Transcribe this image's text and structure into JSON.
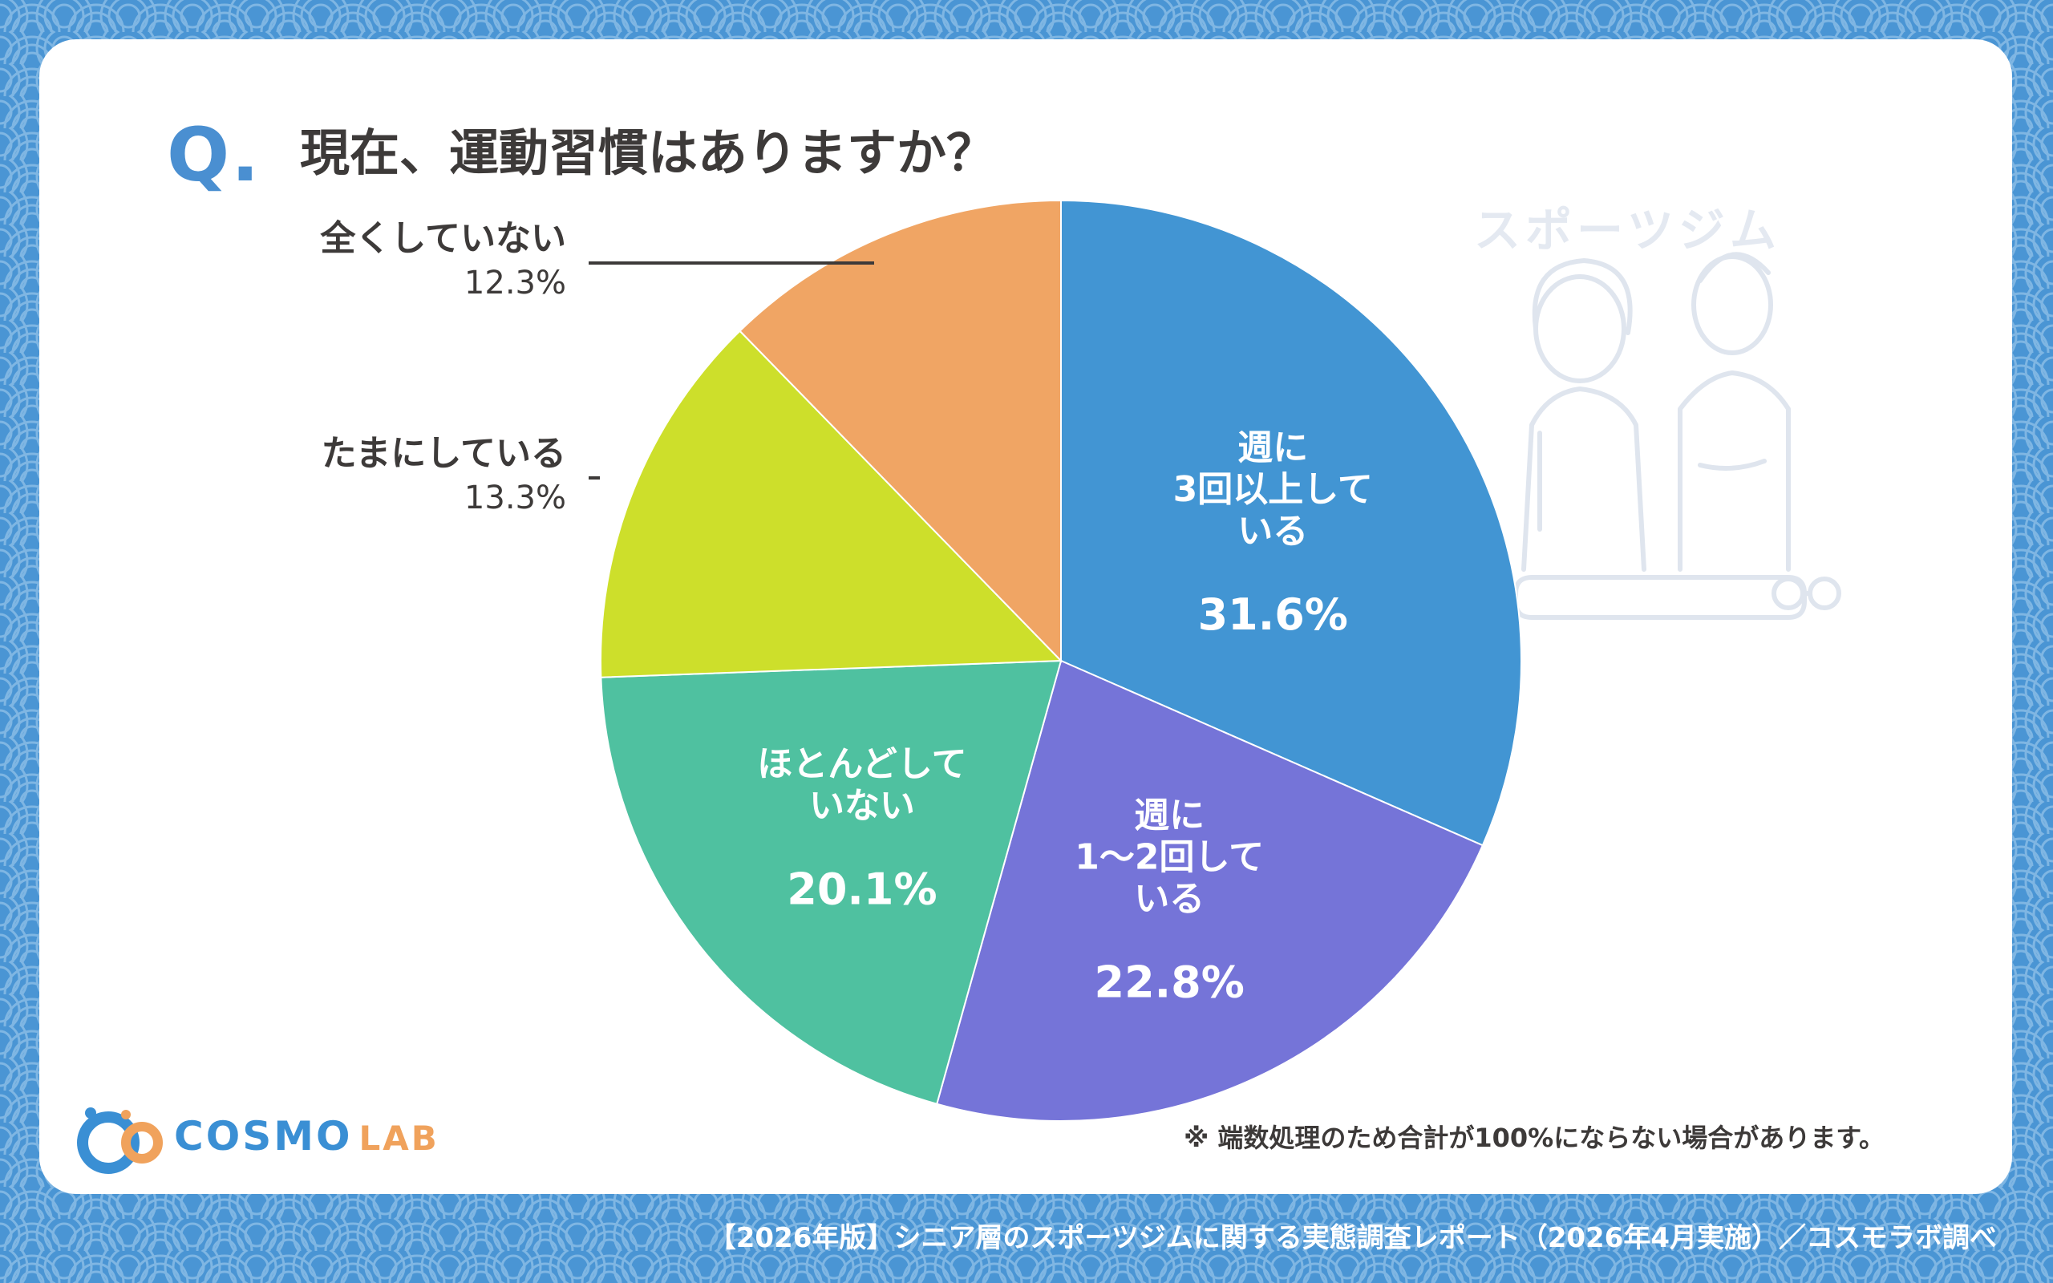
{
  "question": {
    "mark": "Q.",
    "text": "現在、運動習慣はありますか？"
  },
  "illustration": {
    "caption": "スポーツジム",
    "icon": "senior-couple-gym-illustration"
  },
  "chart_data": {
    "type": "pie",
    "start": "12 o'clock",
    "direction": "clockwise",
    "slices": [
      {
        "label": "週に3回以上している",
        "value": 31.6,
        "value_label": "31.6%",
        "color": "#4295d3",
        "label_lines": [
          "週に",
          "3回以上して",
          "いる"
        ],
        "label_position": "inside"
      },
      {
        "label": "週に1〜2回している",
        "value": 22.8,
        "value_label": "22.8%",
        "color": "#7574d8",
        "label_lines": [
          "週に",
          "1〜2回して",
          "いる"
        ],
        "label_position": "inside"
      },
      {
        "label": "ほとんどしていない",
        "value": 20.1,
        "value_label": "20.1%",
        "color": "#4fc1a0",
        "label_lines": [
          "ほとんどして",
          "いない"
        ],
        "label_position": "inside"
      },
      {
        "label": "たまにしている",
        "value": 13.3,
        "value_label": "13.3%",
        "color": "#cddf2b",
        "label_position": "outside-left"
      },
      {
        "label": "全くしていない",
        "value": 12.3,
        "value_label": "12.3%",
        "color": "#f0a564",
        "label_position": "outside-left"
      }
    ]
  },
  "outside_labels": {
    "none": {
      "name": "全くしていない",
      "pct": "12.3%"
    },
    "sometimes": {
      "name": "たまにしている",
      "pct": "13.3%"
    }
  },
  "note": "※ 端数処理のため合計が100%にならない場合があります。",
  "footer": "【2026年版】シニア層のスポーツジムに関する実態調査レポート（2026年4月実施）／コスモラボ調べ",
  "logo": {
    "main": "COSMO",
    "sub": "LAB"
  },
  "colors": {
    "background": "#4a95d4",
    "card": "#ffffff",
    "accent": "#4a8fd1",
    "text": "#3d3a39"
  }
}
